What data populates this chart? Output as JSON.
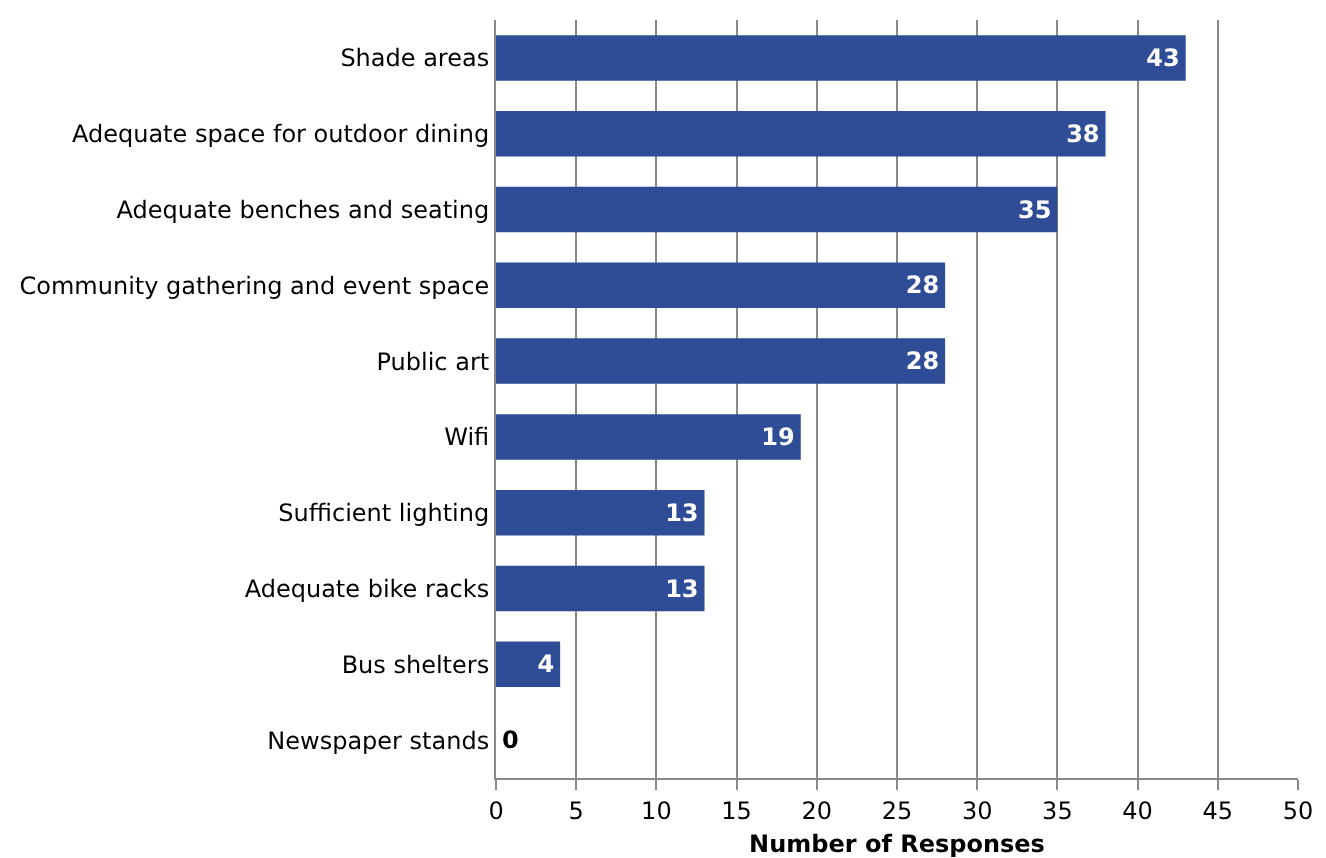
{
  "chart_data": {
    "type": "bar",
    "orientation": "horizontal",
    "xlabel": "Number of Responses",
    "categories": [
      "Shade areas",
      "Adequate space for outdoor dining",
      "Adequate benches and seating",
      "Community gathering and event space",
      "Public art",
      "Wifi",
      "Sufficient lighting",
      "Adequate bike racks",
      "Bus shelters",
      "Newspaper stands"
    ],
    "values": [
      43,
      38,
      35,
      28,
      28,
      19,
      13,
      13,
      4,
      0
    ],
    "color": "#2e4d96",
    "xlim": [
      0,
      50
    ],
    "xticks": [
      0,
      5,
      10,
      15,
      20,
      25,
      30,
      35,
      40,
      45,
      50
    ],
    "grid": "x",
    "data_labels": true
  }
}
